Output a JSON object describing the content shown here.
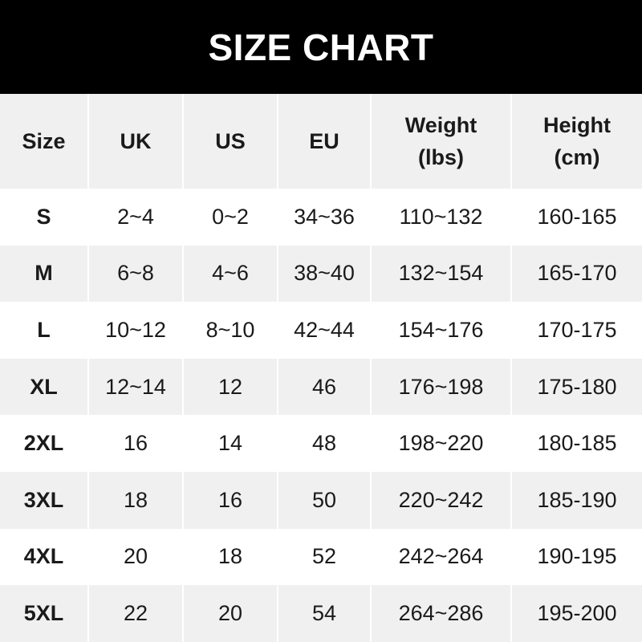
{
  "title": "SIZE CHART",
  "headers": [
    {
      "line1": "Size",
      "line2": ""
    },
    {
      "line1": "UK",
      "line2": ""
    },
    {
      "line1": "US",
      "line2": ""
    },
    {
      "line1": "EU",
      "line2": ""
    },
    {
      "line1": "Weight",
      "line2": "(lbs)"
    },
    {
      "line1": "Height",
      "line2": "(cm)"
    }
  ],
  "rows": [
    [
      "S",
      "2~4",
      "0~2",
      "34~36",
      "110~132",
      "160-165"
    ],
    [
      "M",
      "6~8",
      "4~6",
      "38~40",
      "132~154",
      "165-170"
    ],
    [
      "L",
      "10~12",
      "8~10",
      "42~44",
      "154~176",
      "170-175"
    ],
    [
      "XL",
      "12~14",
      "12",
      "46",
      "176~198",
      "175-180"
    ],
    [
      "2XL",
      "16",
      "14",
      "48",
      "198~220",
      "180-185"
    ],
    [
      "3XL",
      "18",
      "16",
      "50",
      "220~242",
      "185-190"
    ],
    [
      "4XL",
      "20",
      "18",
      "52",
      "242~264",
      "190-195"
    ],
    [
      "5XL",
      "22",
      "20",
      "54",
      "264~286",
      "195-200"
    ]
  ]
}
